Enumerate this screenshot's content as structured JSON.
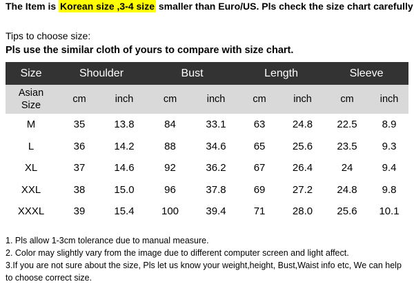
{
  "header": {
    "intro": "The Item is",
    "highlight": "Korean size ,3-4 size",
    "rest": "smaller than Euro/US. Pls check the size chart carefully"
  },
  "tips": {
    "title": "Tips to choose size:",
    "instruction": "Pls use the similar cloth of yours to compare with size chart."
  },
  "table": {
    "columns": [
      "Size",
      "Shoulder",
      "Bust",
      "Length",
      "Sleeve"
    ],
    "size_label": "Asian Size",
    "units": [
      "cm",
      "inch",
      "cm",
      "inch",
      "cm",
      "inch",
      "cm",
      "inch"
    ],
    "rows": [
      [
        "M",
        "35",
        "13.8",
        "84",
        "33.1",
        "63",
        "24.8",
        "22.5",
        "8.9"
      ],
      [
        "L",
        "36",
        "14.2",
        "88",
        "34.6",
        "65",
        "25.6",
        "23.5",
        "9.3"
      ],
      [
        "XL",
        "37",
        "14.6",
        "92",
        "36.2",
        "67",
        "26.4",
        "24",
        "9.4"
      ],
      [
        "XXL",
        "38",
        "15.0",
        "96",
        "37.8",
        "69",
        "27.2",
        "24.8",
        "9.8"
      ],
      [
        "XXXL",
        "39",
        "15.4",
        "100",
        "39.4",
        "71",
        "28.0",
        "25.6",
        "10.1"
      ]
    ]
  },
  "notes": [
    "1. Pls allow 1-3cm tolerance due to manual measure.",
    "2. Color may slightly vary from the image due to different computer screen and light affect.",
    "3.If you are not sure about the size, Pls let us know your weight,height, Bust,Waist info etc, We can help to choose correct size."
  ]
}
